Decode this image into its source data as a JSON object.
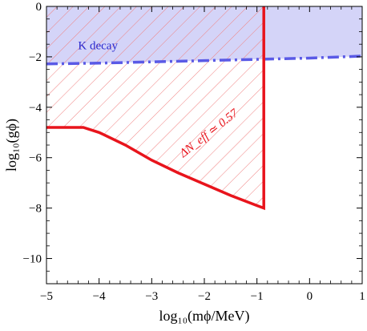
{
  "chart_data": {
    "type": "line",
    "xlabel": "log₁₀(mϕ/MeV)",
    "ylabel": "log₁₀(gϕ)",
    "xlim": [
      -5,
      1
    ],
    "ylim": [
      -11,
      0
    ],
    "xticks": [
      -5,
      -4,
      -3,
      -2,
      -1,
      0,
      1
    ],
    "yticks": [
      0,
      -2,
      -4,
      -6,
      -8,
      -10
    ],
    "xtick_labels": [
      "−5",
      "−4",
      "−3",
      "−2",
      "−1",
      "0",
      "1"
    ],
    "ytick_labels": [
      "0",
      "−2",
      "−4",
      "−6",
      "−8",
      "−10"
    ],
    "grid": false,
    "colors": {
      "kdecay": "#5a5ae6",
      "kdecay_fill": "#d4d4f8",
      "neff": "#e8141c",
      "hatch": "#f08080"
    },
    "series": [
      {
        "name": "K decay",
        "style": "dash-dot",
        "shaded": "above",
        "x": [
          -5.0,
          -4.0,
          -3.0,
          -2.0,
          -1.0,
          0.0,
          1.0
        ],
        "y": [
          -2.28,
          -2.25,
          -2.2,
          -2.15,
          -2.1,
          -2.05,
          -1.97
        ]
      },
      {
        "name": "ΔN_eff ≃ 0.57",
        "style": "solid",
        "shaded": "hatched-above",
        "x": [
          -5.0,
          -4.3,
          -4.0,
          -3.5,
          -3.0,
          -2.5,
          -2.0,
          -1.5,
          -1.0,
          -0.87,
          -0.87
        ],
        "y": [
          -4.8,
          -4.8,
          -5.0,
          -5.5,
          -6.1,
          -6.6,
          -7.05,
          -7.5,
          -7.9,
          -8.0,
          0.0
        ]
      }
    ],
    "annotations": [
      {
        "text": "K decay",
        "x": -4.4,
        "y": -1.7,
        "color": "#2a2ad0"
      },
      {
        "text": "ΔN_eff ≃ 0.57",
        "x": -2.4,
        "y": -6.0,
        "rotation": -38,
        "color": "#e8141c"
      }
    ]
  }
}
